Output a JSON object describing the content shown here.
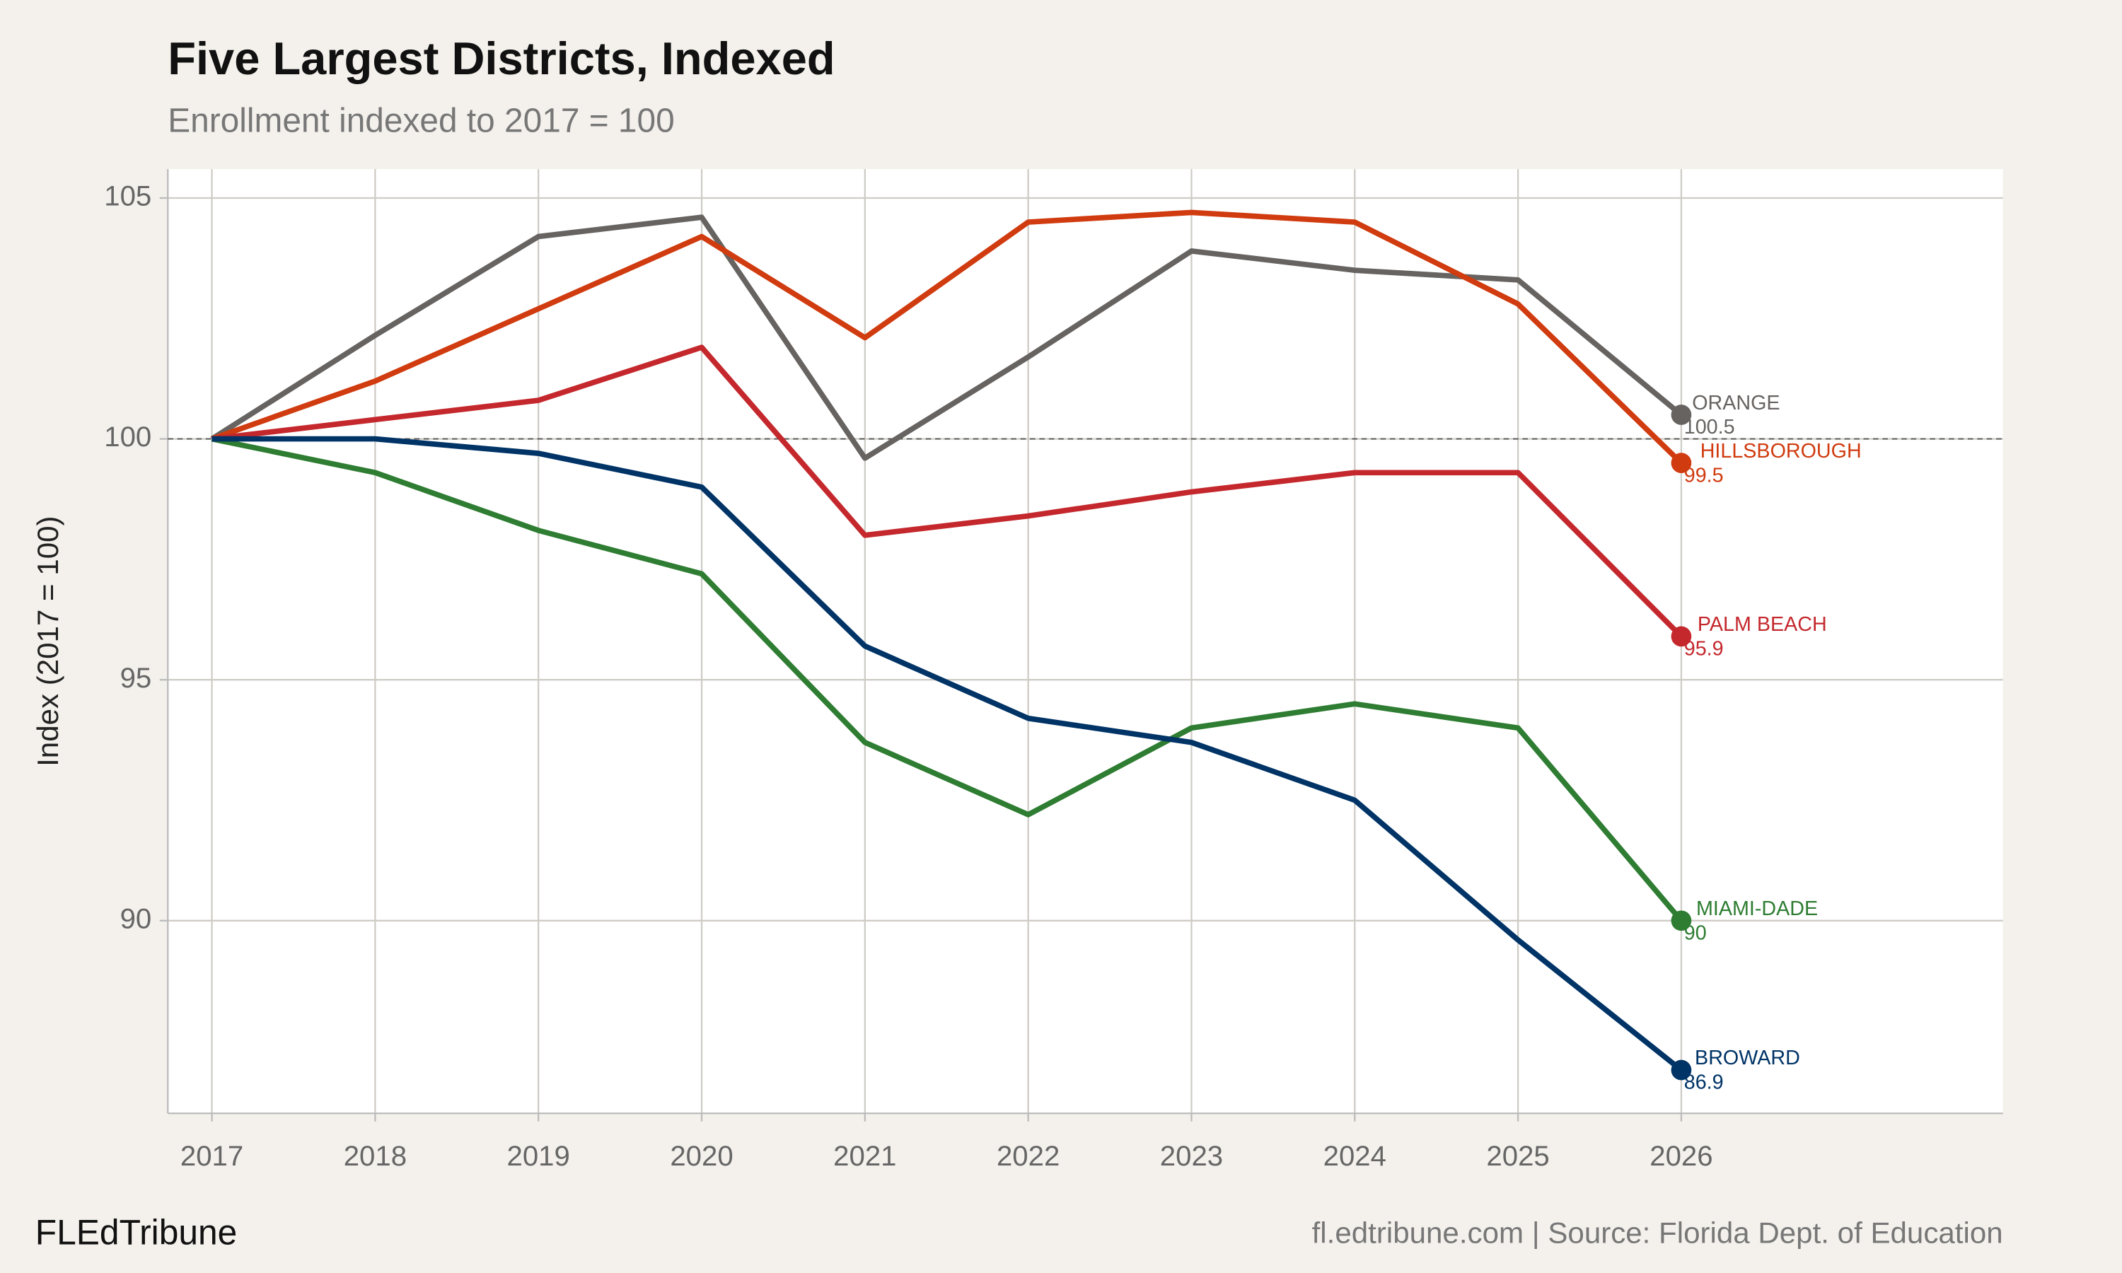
{
  "chart_data": {
    "type": "line",
    "title": "Five Largest Districts, Indexed",
    "subtitle": "Enrollment indexed to 2017 = 100",
    "y_label": "Index (2017 = 100)",
    "brand": "FLEdTribune",
    "caption": "fl.edtribune.com | Source: Florida Dept. of Education",
    "x": [
      2017,
      2018,
      2019,
      2020,
      2021,
      2022,
      2023,
      2024,
      2025,
      2026
    ],
    "xlim": [
      2016.73,
      2027.97
    ],
    "xticks": [
      2017,
      2018,
      2019,
      2020,
      2021,
      2022,
      2023,
      2024,
      2025,
      2026
    ],
    "ylim": [
      86.0,
      105.6
    ],
    "yticks": [
      90,
      95,
      100,
      105
    ],
    "grid": true,
    "reference_line": 100,
    "series": [
      {
        "name": "ORANGE",
        "color": "#666361",
        "values": [
          100,
          102.15,
          104.2,
          104.6,
          99.6,
          101.7,
          103.9,
          103.5,
          103.3,
          100.5
        ]
      },
      {
        "name": "HILLSBOROUGH",
        "color": "#d03b0f",
        "values": [
          100,
          101.2,
          102.7,
          104.2,
          102.1,
          104.5,
          104.7,
          104.5,
          102.8,
          99.5
        ]
      },
      {
        "name": "PALM BEACH",
        "color": "#c4282d",
        "values": [
          100,
          100.4,
          100.8,
          101.9,
          98.0,
          98.4,
          98.9,
          99.3,
          99.3,
          95.9
        ]
      },
      {
        "name": "MIAMI-DADE",
        "color": "#2e7d32",
        "values": [
          100,
          99.3,
          98.1,
          97.2,
          93.7,
          92.2,
          94.0,
          94.5,
          94.0,
          90
        ]
      },
      {
        "name": "BROWARD",
        "color": "#003366",
        "values": [
          100,
          100.0,
          99.7,
          99.0,
          95.7,
          94.2,
          93.7,
          92.5,
          89.6,
          86.9
        ]
      }
    ]
  }
}
